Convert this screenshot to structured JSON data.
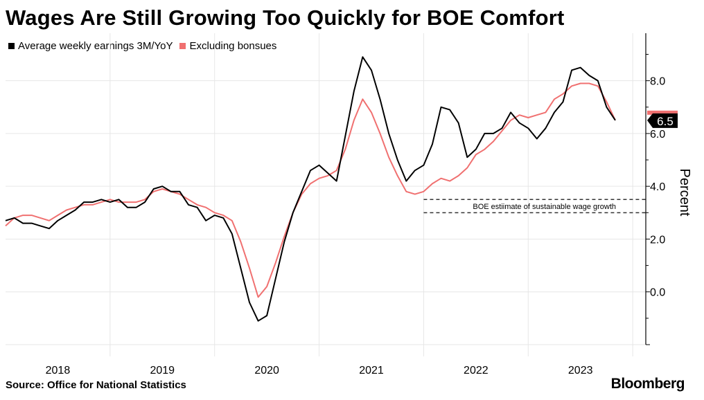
{
  "chart_data": {
    "type": "line",
    "title": "Wages Are Still Growing Too Quickly for BOE Comfort",
    "ylabel": "Percent",
    "xlabel": "",
    "source": "Source: Office for National Statistics",
    "brand": "Bloomberg",
    "xlim": [
      2017.5,
      2023.625
    ],
    "ylim": [
      -2.0,
      9.8
    ],
    "yticks": [
      {
        "value": 0.0,
        "label": "0.0"
      },
      {
        "value": 2.0,
        "label": "2.0"
      },
      {
        "value": 4.0,
        "label": "4.0"
      },
      {
        "value": 6.0,
        "label": "6.0"
      },
      {
        "value": 8.0,
        "label": "8.0"
      }
    ],
    "xticks": [
      {
        "value": 2018,
        "label": "2018"
      },
      {
        "value": 2019,
        "label": "2019"
      },
      {
        "value": 2020,
        "label": "2020"
      },
      {
        "value": 2021,
        "label": "2021"
      },
      {
        "value": 2022,
        "label": "2022"
      },
      {
        "value": 2023,
        "label": "2023"
      }
    ],
    "year_separators": [
      2018.5,
      2019.5,
      2020.5,
      2021.5,
      2022.5,
      2023.5
    ],
    "x_start": 2017.5,
    "x_step": 0.08333,
    "series": [
      {
        "name": "Average weekly earnings 3M/YoY",
        "color": "#000000",
        "values": [
          2.7,
          2.8,
          2.6,
          2.6,
          2.5,
          2.4,
          2.7,
          2.9,
          3.1,
          3.4,
          3.4,
          3.5,
          3.4,
          3.5,
          3.2,
          3.2,
          3.4,
          3.9,
          4.0,
          3.8,
          3.8,
          3.3,
          3.2,
          2.7,
          2.9,
          2.8,
          2.2,
          0.9,
          -0.4,
          -1.1,
          -0.9,
          0.5,
          1.9,
          3.0,
          3.8,
          4.6,
          4.8,
          4.5,
          4.2,
          5.9,
          7.6,
          8.9,
          8.4,
          7.3,
          6.0,
          5.0,
          4.2,
          4.6,
          4.8,
          5.6,
          7.0,
          6.9,
          6.4,
          5.1,
          5.4,
          6.0,
          6.0,
          6.2,
          6.8,
          6.4,
          6.2,
          5.8,
          6.2,
          6.8,
          7.2,
          8.4,
          8.5,
          8.2,
          8.0,
          7.0,
          6.5
        ]
      },
      {
        "name": "Excluding bonsues",
        "color": "#f07070",
        "values": [
          2.5,
          2.8,
          2.9,
          2.9,
          2.8,
          2.7,
          2.9,
          3.1,
          3.2,
          3.3,
          3.3,
          3.4,
          3.5,
          3.4,
          3.4,
          3.4,
          3.5,
          3.8,
          3.9,
          3.8,
          3.7,
          3.5,
          3.3,
          3.2,
          3.0,
          2.9,
          2.7,
          1.9,
          0.9,
          -0.2,
          0.2,
          1.1,
          2.1,
          3.0,
          3.7,
          4.1,
          4.3,
          4.4,
          4.6,
          5.4,
          6.5,
          7.3,
          6.8,
          6.0,
          5.1,
          4.4,
          3.8,
          3.7,
          3.8,
          4.1,
          4.3,
          4.2,
          4.4,
          4.7,
          5.2,
          5.4,
          5.7,
          6.1,
          6.5,
          6.7,
          6.6,
          6.7,
          6.8,
          7.3,
          7.5,
          7.8,
          7.9,
          7.9,
          7.8,
          7.2,
          6.5
        ]
      }
    ],
    "reference_band": {
      "from_x": 2021.5,
      "y_upper": 3.5,
      "y_lower": 3.0,
      "label": "BOE estiimate of sustainable wage growth"
    },
    "last_value_label": "6.5"
  }
}
